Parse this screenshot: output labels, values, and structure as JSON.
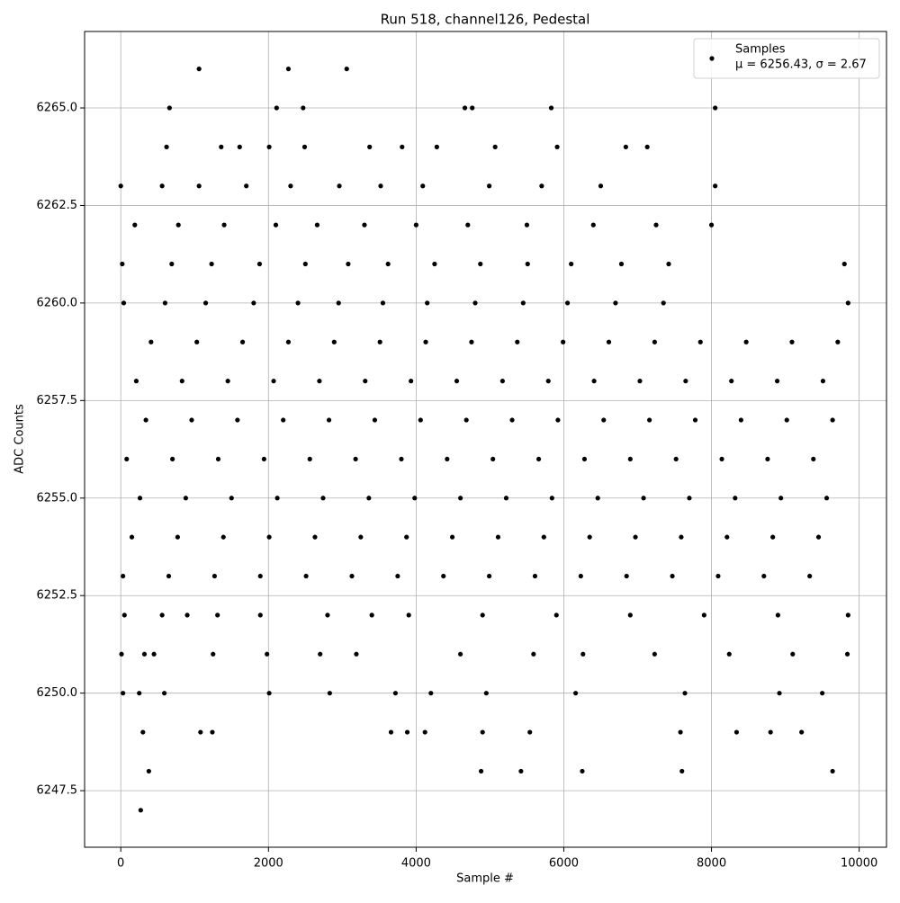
{
  "chart_data": {
    "type": "scatter",
    "title": "Run 518, channel126, Pedestal",
    "x_label": "Sample #",
    "y_label": "ADC Counts",
    "xlim": [
      -490,
      10370
    ],
    "ylim": [
      6246.05,
      6266.96
    ],
    "xticks": [
      0,
      2000,
      4000,
      6000,
      8000,
      10000
    ],
    "yticks": [
      6247.5,
      {
        "value": 6250,
        "label": "6250.0"
      },
      6252.5,
      {
        "value": 6255,
        "label": "6255.0"
      },
      6257.5,
      {
        "value": 6260,
        "label": "6260.0"
      },
      6262.5,
      {
        "value": 6265,
        "label": "6265.0"
      }
    ],
    "grid": true,
    "legend": "upper right",
    "legend_note": "μ = 6256.43, σ = 2.67",
    "series": [
      {
        "name": "Samples",
        "color": "#000000",
        "x": [
          270,
          380,
          4880,
          5420,
          6250,
          7600,
          9640,
          300,
          1080,
          1240,
          3660,
          3880,
          4120,
          4900,
          5540,
          7580,
          8340,
          8800,
          9220,
          30,
          250,
          590,
          2010,
          2830,
          3720,
          4200,
          4950,
          6160,
          7640,
          8920,
          9500,
          10,
          320,
          450,
          1250,
          1980,
          2700,
          3190,
          4600,
          5590,
          6260,
          7230,
          8240,
          9100,
          9840,
          50,
          560,
          900,
          1310,
          1890,
          2800,
          3400,
          3900,
          4900,
          5900,
          6900,
          7900,
          8900,
          9850,
          30,
          650,
          1270,
          1890,
          2510,
          3130,
          3750,
          4370,
          4990,
          5610,
          6230,
          6850,
          7470,
          8090,
          8710,
          9330,
          150,
          770,
          1390,
          2010,
          2630,
          3250,
          3870,
          4490,
          5110,
          5730,
          6350,
          6970,
          7590,
          8210,
          8830,
          9450,
          260,
          880,
          1500,
          2120,
          2740,
          3360,
          3980,
          4600,
          5220,
          5840,
          6460,
          7080,
          7700,
          8320,
          8940,
          9560,
          80,
          700,
          1320,
          1940,
          2560,
          3180,
          3800,
          4420,
          5040,
          5660,
          6280,
          6900,
          7520,
          8140,
          8760,
          9380,
          340,
          960,
          1580,
          2200,
          2820,
          3440,
          4060,
          4680,
          5300,
          5920,
          6540,
          7160,
          7780,
          8400,
          9020,
          9640,
          210,
          830,
          1450,
          2070,
          2690,
          3310,
          3930,
          4550,
          5170,
          5790,
          6410,
          7030,
          7650,
          8270,
          8890,
          9510,
          410,
          1030,
          1650,
          2270,
          2890,
          3510,
          4130,
          4750,
          5370,
          5990,
          6610,
          7230,
          7850,
          8470,
          9090,
          9710,
          40,
          600,
          1150,
          1800,
          2400,
          2950,
          3550,
          4150,
          4800,
          5450,
          6050,
          6700,
          7350,
          9850,
          20,
          690,
          1230,
          1880,
          2500,
          3080,
          3620,
          4250,
          4870,
          5510,
          6100,
          6780,
          7420,
          9800,
          190,
          780,
          1400,
          2100,
          2660,
          3300,
          4000,
          4700,
          5500,
          6400,
          7250,
          8000,
          0,
          560,
          1060,
          1700,
          2300,
          2960,
          3520,
          4090,
          4990,
          5700,
          6500,
          8050,
          620,
          1360,
          1610,
          2010,
          2490,
          3370,
          3810,
          4280,
          5070,
          5910,
          6840,
          7130,
          660,
          2110,
          2470,
          4660,
          4760,
          5830,
          8050,
          1060,
          2270,
          3060
        ],
        "values": [
          6247,
          6248,
          6248,
          6248,
          6248,
          6248,
          6248,
          6249,
          6249,
          6249,
          6249,
          6249,
          6249,
          6249,
          6249,
          6249,
          6249,
          6249,
          6249,
          6250,
          6250,
          6250,
          6250,
          6250,
          6250,
          6250,
          6250,
          6250,
          6250,
          6250,
          6250,
          6251,
          6251,
          6251,
          6251,
          6251,
          6251,
          6251,
          6251,
          6251,
          6251,
          6251,
          6251,
          6251,
          6251,
          6252,
          6252,
          6252,
          6252,
          6252,
          6252,
          6252,
          6252,
          6252,
          6252,
          6252,
          6252,
          6252,
          6252,
          6253,
          6253,
          6253,
          6253,
          6253,
          6253,
          6253,
          6253,
          6253,
          6253,
          6253,
          6253,
          6253,
          6253,
          6253,
          6253,
          6254,
          6254,
          6254,
          6254,
          6254,
          6254,
          6254,
          6254,
          6254,
          6254,
          6254,
          6254,
          6254,
          6254,
          6254,
          6254,
          6255,
          6255,
          6255,
          6255,
          6255,
          6255,
          6255,
          6255,
          6255,
          6255,
          6255,
          6255,
          6255,
          6255,
          6255,
          6255,
          6256,
          6256,
          6256,
          6256,
          6256,
          6256,
          6256,
          6256,
          6256,
          6256,
          6256,
          6256,
          6256,
          6256,
          6256,
          6256,
          6257,
          6257,
          6257,
          6257,
          6257,
          6257,
          6257,
          6257,
          6257,
          6257,
          6257,
          6257,
          6257,
          6257,
          6257,
          6257,
          6258,
          6258,
          6258,
          6258,
          6258,
          6258,
          6258,
          6258,
          6258,
          6258,
          6258,
          6258,
          6258,
          6258,
          6258,
          6258,
          6259,
          6259,
          6259,
          6259,
          6259,
          6259,
          6259,
          6259,
          6259,
          6259,
          6259,
          6259,
          6259,
          6259,
          6259,
          6259,
          6260,
          6260,
          6260,
          6260,
          6260,
          6260,
          6260,
          6260,
          6260,
          6260,
          6260,
          6260,
          6260,
          6260,
          6261,
          6261,
          6261,
          6261,
          6261,
          6261,
          6261,
          6261,
          6261,
          6261,
          6261,
          6261,
          6261,
          6261,
          6262,
          6262,
          6262,
          6262,
          6262,
          6262,
          6262,
          6262,
          6262,
          6262,
          6262,
          6262,
          6263,
          6263,
          6263,
          6263,
          6263,
          6263,
          6263,
          6263,
          6263,
          6263,
          6263,
          6263,
          6264,
          6264,
          6264,
          6264,
          6264,
          6264,
          6264,
          6264,
          6264,
          6264,
          6264,
          6264,
          6265,
          6265,
          6265,
          6265,
          6265,
          6265,
          6265,
          6266,
          6266,
          6266
        ]
      }
    ]
  }
}
